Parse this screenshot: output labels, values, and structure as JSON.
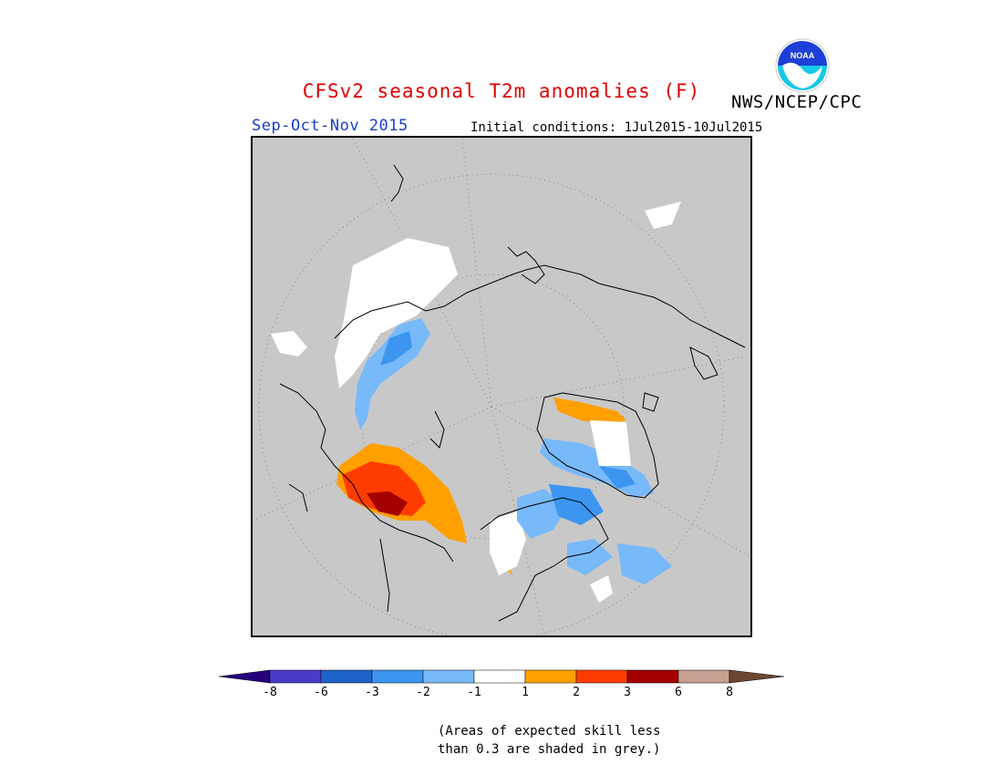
{
  "header": {
    "title": "CFSv2 seasonal T2m anomalies (F)",
    "agency": "NWS/NCEP/CPC",
    "logo_text": "NOAA",
    "season": "Sep-Oct-Nov 2015",
    "initial_conditions": "Initial conditions: 1Jul2015-10Jul2015"
  },
  "legend": {
    "colors": [
      "#24007a",
      "#4b3cc8",
      "#1e64c8",
      "#3c96f0",
      "#78b9fa",
      "#ffffff",
      "#ffa000",
      "#ff3c00",
      "#a50000",
      "#c8a092",
      "#6e4632"
    ],
    "ticks": [
      "-8",
      "-6",
      "-3",
      "-2",
      "-1",
      "1",
      "2",
      "3",
      "6",
      "8"
    ]
  },
  "note": {
    "line1": "(Areas of expected skill less",
    "line2": "than 0.3 are shaded in grey.)"
  },
  "colors": {
    "title": "#e00000",
    "season": "#1a3ccc",
    "map_background": "#c8c8c8",
    "noaa_blue": "#1e3fd8",
    "noaa_cyan": "#18c8e8"
  }
}
